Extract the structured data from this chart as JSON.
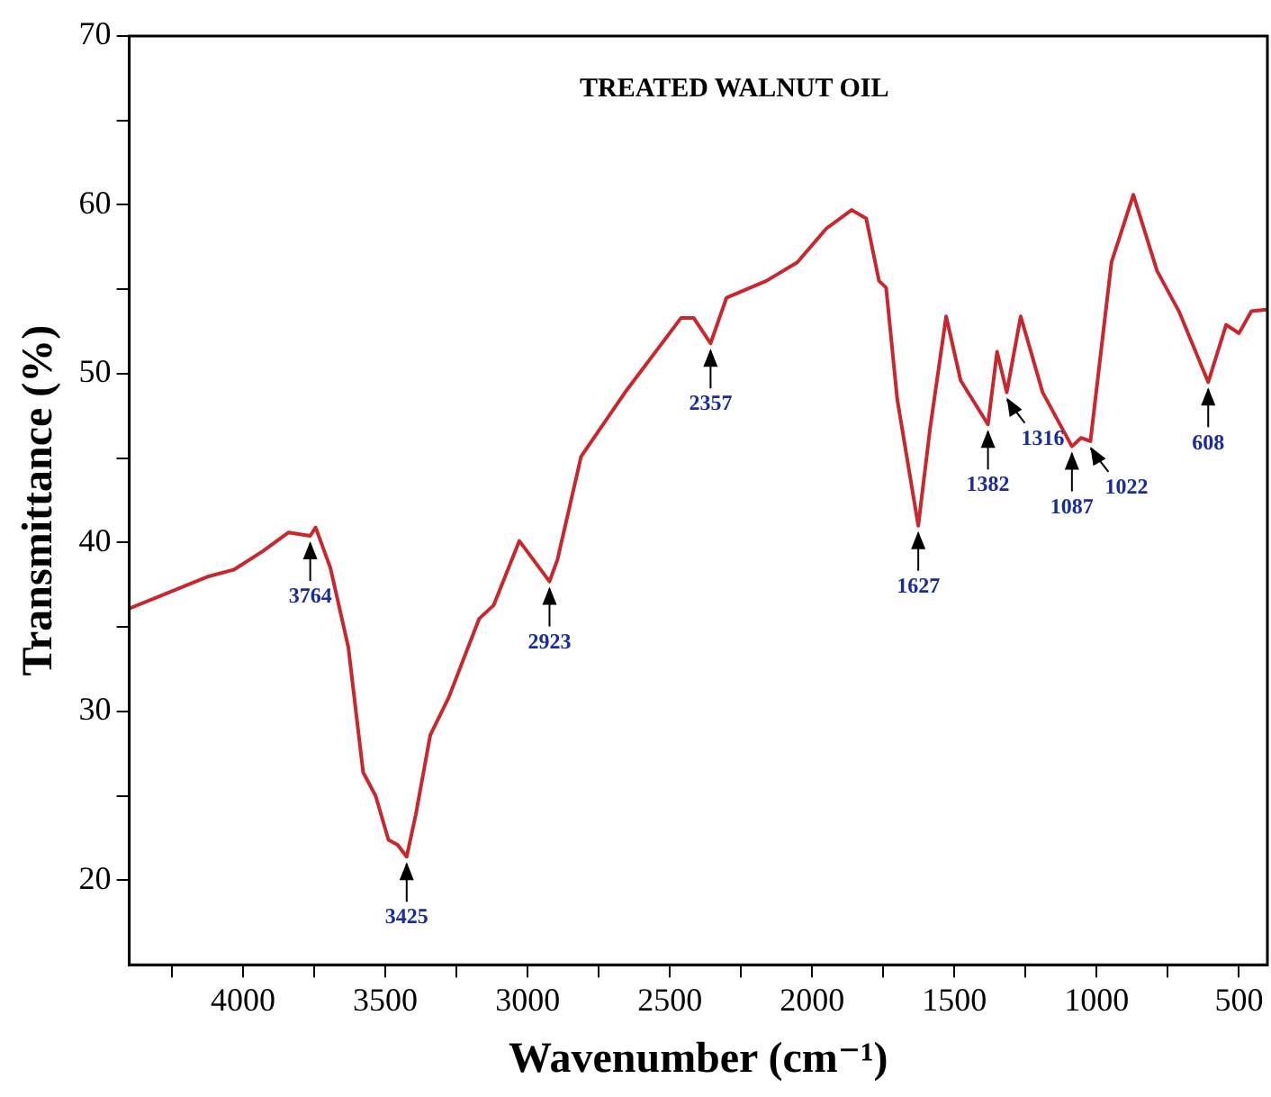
{
  "chart_data": {
    "type": "line",
    "title": "TREATED WALNUT OIL",
    "xlabel": "Wavenumber (cm⁻¹)",
    "ylabel": "Transmittance (%)",
    "x": [
      4400,
      4121,
      4032,
      3930,
      3840,
      3764,
      3745,
      3693,
      3630,
      3578,
      3534,
      3489,
      3457,
      3425,
      3393,
      3342,
      3278,
      3170,
      3119,
      3029,
      2923,
      2895,
      2812,
      2653,
      2461,
      2416,
      2357,
      2301,
      2161,
      2052,
      1950,
      1861,
      1810,
      1765,
      1740,
      1701,
      1627,
      1586,
      1529,
      1478,
      1382,
      1350,
      1316,
      1267,
      1190,
      1087,
      1055,
      1022,
      948,
      871,
      788,
      711,
      608,
      545,
      500,
      456,
      404
    ],
    "series": [
      {
        "color": "#c8282d",
        "values": [
          36.1,
          38.0,
          38.4,
          39.5,
          40.6,
          40.4,
          40.9,
          38.5,
          33.8,
          26.4,
          25.0,
          22.4,
          22.1,
          21.4,
          23.9,
          28.6,
          30.8,
          35.5,
          36.3,
          40.1,
          37.7,
          39.0,
          45.1,
          49.0,
          53.3,
          53.3,
          51.8,
          54.5,
          55.5,
          56.6,
          58.6,
          59.7,
          59.2,
          55.5,
          55.1,
          48.5,
          41.0,
          46.7,
          53.4,
          49.6,
          47.0,
          51.3,
          48.9,
          53.4,
          48.9,
          45.7,
          46.2,
          46.0,
          56.6,
          60.6,
          56.1,
          53.7,
          49.5,
          52.9,
          52.4,
          53.7,
          53.8
        ]
      }
    ],
    "xlim": [
      4400,
      400
    ],
    "xticks": [
      {
        "value": 4250,
        "label": null
      },
      4000,
      {
        "value": 3750,
        "label": null
      },
      3500,
      {
        "value": 3250,
        "label": null
      },
      3000,
      {
        "value": 2750,
        "label": null
      },
      2500,
      {
        "value": 2250,
        "label": null
      },
      2000,
      {
        "value": 1750,
        "label": null
      },
      1500,
      {
        "value": 1250,
        "label": null
      },
      1000,
      {
        "value": 750,
        "label": null
      },
      500
    ],
    "ylim": [
      15,
      70
    ],
    "yticks": [
      20,
      {
        "value": 25,
        "label": null
      },
      30,
      {
        "value": 35,
        "label": null
      },
      40,
      {
        "value": 45,
        "label": null
      },
      50,
      {
        "value": 55,
        "label": null
      },
      60,
      {
        "value": 65,
        "label": null
      },
      70
    ],
    "grid": false,
    "legend": false,
    "marker": "none",
    "line_style": "solid",
    "annotations": [
      {
        "text": "3764",
        "x": 3764,
        "y": 40.4
      },
      {
        "text": "3425",
        "x": 3425,
        "y": 21.4
      },
      {
        "text": "2923",
        "x": 2923,
        "y": 37.7
      },
      {
        "text": "2357",
        "x": 2357,
        "y": 51.8
      },
      {
        "text": "1627",
        "x": 1627,
        "y": 41.0
      },
      {
        "text": "1382",
        "x": 1382,
        "y": 47.0
      },
      {
        "text": "1316",
        "x": 1316,
        "y": 48.9
      },
      {
        "text": "1087",
        "x": 1087,
        "y": 45.7
      },
      {
        "text": "1022",
        "x": 1022,
        "y": 46.0
      },
      {
        "text": "608",
        "x": 608,
        "y": 49.5
      }
    ]
  }
}
